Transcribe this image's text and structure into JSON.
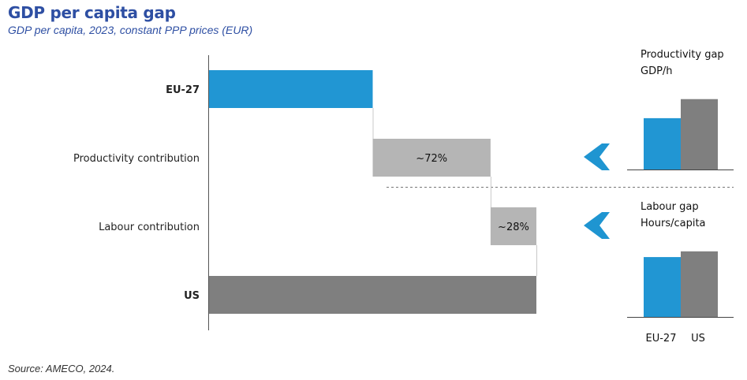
{
  "title": "GDP per capita gap",
  "subtitle": "GDP per capita, 2023, constant PPP prices (EUR)",
  "source": "Source: AMECO, 2024.",
  "colors": {
    "eu": "#2196d3",
    "us": "#7f7f7f",
    "contrib": "#b5b5b5",
    "heading": "#2e4fa3"
  },
  "chart_data": [
    {
      "type": "bar",
      "subtype": "waterfall",
      "categories": [
        "EU-27",
        "Productivity contribution",
        "Labour contribution",
        "US"
      ],
      "values": [
        100,
        72,
        28,
        200
      ],
      "bar_labels": [
        "",
        "~72%",
        "~28%",
        ""
      ]
    },
    {
      "type": "bar",
      "title": "Productivity gap",
      "ylabel": "GDP/h",
      "categories": [
        "EU-27",
        "US"
      ],
      "values": [
        70,
        96
      ]
    },
    {
      "type": "bar",
      "title": "Labour gap",
      "ylabel": "Hours/capita",
      "categories": [
        "EU-27",
        "US"
      ],
      "values": [
        73,
        80
      ]
    }
  ]
}
